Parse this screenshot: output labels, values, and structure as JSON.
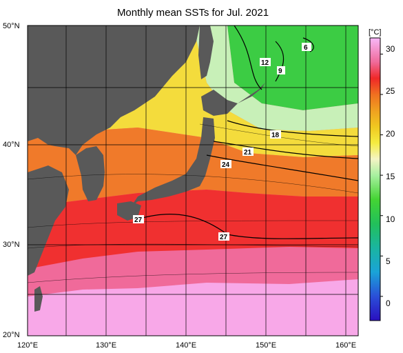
{
  "title": "Monthly mean SSTs for Jul. 2021",
  "axes": {
    "lat_labels": [
      "50°N",
      "40°N",
      "30°N",
      "20°N"
    ],
    "lon_labels": [
      "120°E",
      "130°E",
      "140°E",
      "150°E",
      "160°E"
    ]
  },
  "colorbar": {
    "unit": "[°C]",
    "min": -3,
    "max": 32,
    "tick_labels": [
      "30",
      "25",
      "20",
      "15",
      "10",
      "5",
      "0"
    ],
    "stops": [
      {
        "v": -3,
        "c": "#2a0fbf"
      },
      {
        "v": 0,
        "c": "#2a4fd8"
      },
      {
        "v": 3,
        "c": "#1aa3d8"
      },
      {
        "v": 6,
        "c": "#1ab5a0"
      },
      {
        "v": 9,
        "c": "#22c05a"
      },
      {
        "v": 12,
        "c": "#44d433"
      },
      {
        "v": 15,
        "c": "#a8f0a0"
      },
      {
        "v": 17,
        "c": "#f4f4c4"
      },
      {
        "v": 19,
        "c": "#f4ec40"
      },
      {
        "v": 21,
        "c": "#f0c820"
      },
      {
        "v": 23,
        "c": "#f0a020"
      },
      {
        "v": 25,
        "c": "#f07020"
      },
      {
        "v": 27,
        "c": "#f02828"
      },
      {
        "v": 29,
        "c": "#f06a9a"
      },
      {
        "v": 32,
        "c": "#f8b8f8"
      }
    ]
  },
  "contour_labels": [
    "6",
    "12",
    "9",
    "18",
    "21",
    "24",
    "27",
    "27"
  ],
  "colors": {
    "land": "#595959",
    "grid": "#000000"
  }
}
